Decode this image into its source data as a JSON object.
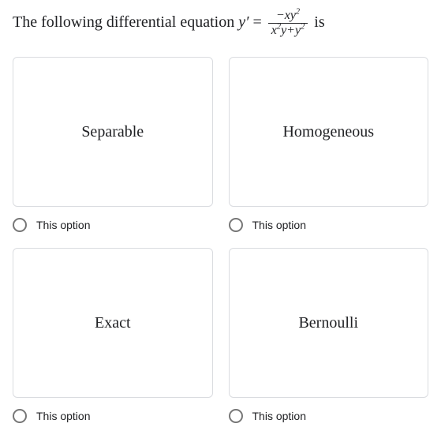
{
  "question": {
    "pre_text": "The following differential equation ",
    "equation_lhs": "y′",
    "equals": " = ",
    "numerator": "−xy",
    "numerator_sup": "2",
    "denominator_a": "x",
    "denominator_a_sup": "2",
    "denominator_b": "y+y",
    "denominator_b_sup": "2",
    "post_text": "  is"
  },
  "options": [
    {
      "card_label": "Separable",
      "option_text": "This option"
    },
    {
      "card_label": "Homogeneous",
      "option_text": "This option"
    },
    {
      "card_label": "Exact",
      "option_text": "This option"
    },
    {
      "card_label": "Bernoulli",
      "option_text": "This option"
    }
  ],
  "colors": {
    "border": "#dadce0",
    "text": "#202124",
    "radio_border": "#777777",
    "background": "#ffffff"
  }
}
